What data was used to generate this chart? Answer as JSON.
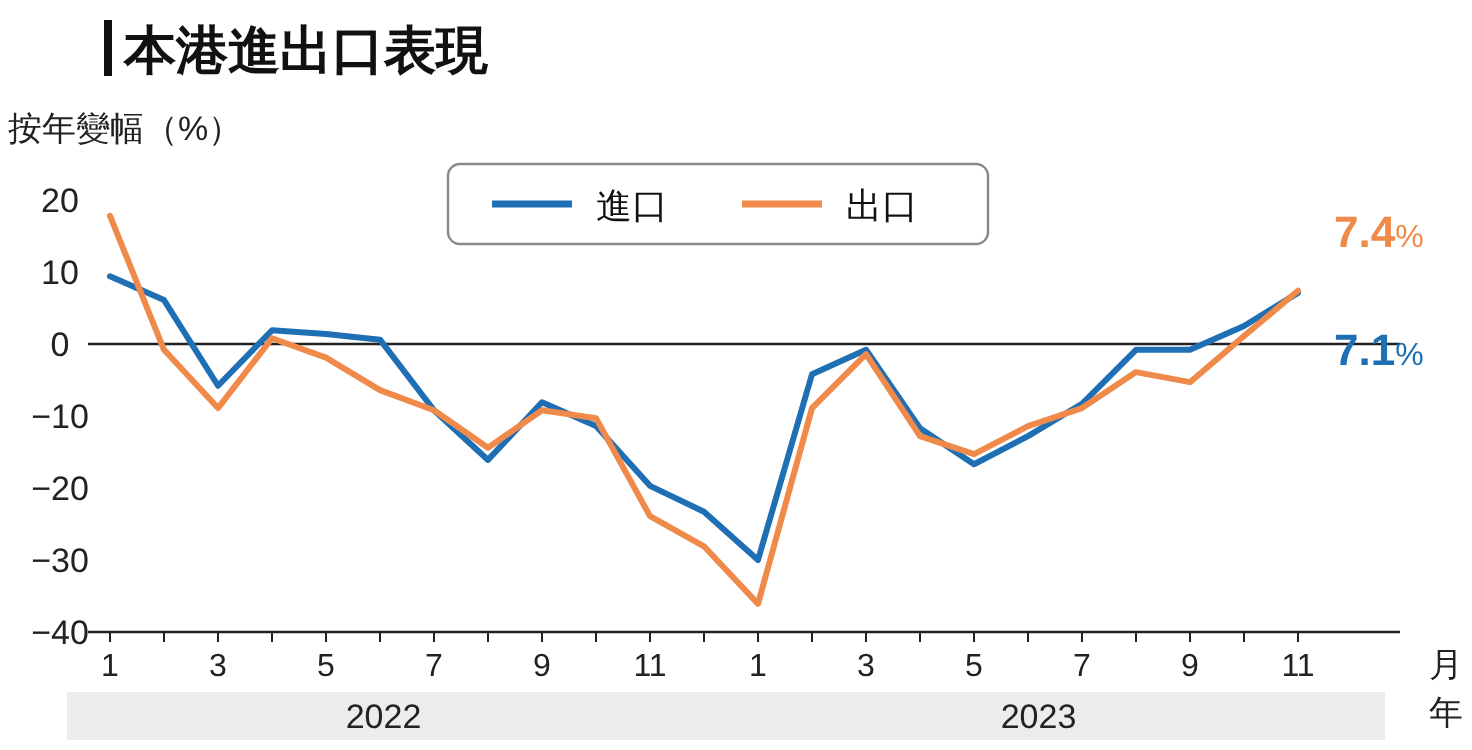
{
  "chart_data": {
    "type": "line",
    "title": "本港進出口表現",
    "ylabel": "按年變幅（%）",
    "xlabel": "月年",
    "categories": [
      "1",
      null,
      "3",
      null,
      "5",
      null,
      "7",
      null,
      "9",
      null,
      "11",
      null,
      "1",
      null,
      "3",
      null,
      "5",
      null,
      "7",
      null,
      "9",
      null,
      "11"
    ],
    "series": [
      {
        "name": "進口",
        "color": "#1f6fb4",
        "values": [
          9.4,
          6.1,
          -5.8,
          1.9,
          1.4,
          0.6,
          -9.2,
          -16.1,
          -8.1,
          -11.4,
          -19.7,
          -23.3,
          -30,
          -4.2,
          -0.8,
          -11.7,
          -16.7,
          -12.8,
          -8.3,
          -0.8,
          -0.8,
          2.5,
          7.1
        ],
        "value_labels": [
          null,
          null,
          null,
          null,
          null,
          null,
          null,
          null,
          null,
          null,
          null,
          null,
          null,
          null,
          null,
          null,
          null,
          null,
          null,
          null,
          null,
          null,
          "7.1%"
        ]
      },
      {
        "name": "出口",
        "color": "#ef8a4a",
        "values": [
          17.8,
          -0.8,
          -8.9,
          0.8,
          -1.9,
          -6.4,
          -9.2,
          -14.4,
          -9.2,
          -10.3,
          -23.9,
          -28.1,
          -36.1,
          -8.9,
          -1.4,
          -12.8,
          -15.3,
          -11.4,
          -8.9,
          -3.9,
          -5.3,
          1.1,
          7.4
        ],
        "value_labels": [
          null,
          null,
          null,
          null,
          null,
          null,
          null,
          null,
          null,
          null,
          null,
          null,
          null,
          null,
          null,
          null,
          null,
          null,
          null,
          null,
          null,
          null,
          "7.4%"
        ]
      }
    ],
    "annotations": [
      "2022",
      "2023"
    ],
    "ylim": [
      -40,
      20
    ],
    "yticks": [
      -40,
      -30,
      -20,
      -10,
      0,
      10,
      20
    ],
    "ref_lines": [
      {
        "axis": "y",
        "value": 0,
        "color": "#222222"
      }
    ],
    "grid": false,
    "legend": "top",
    "line_style": "solid",
    "marker": "none"
  }
}
